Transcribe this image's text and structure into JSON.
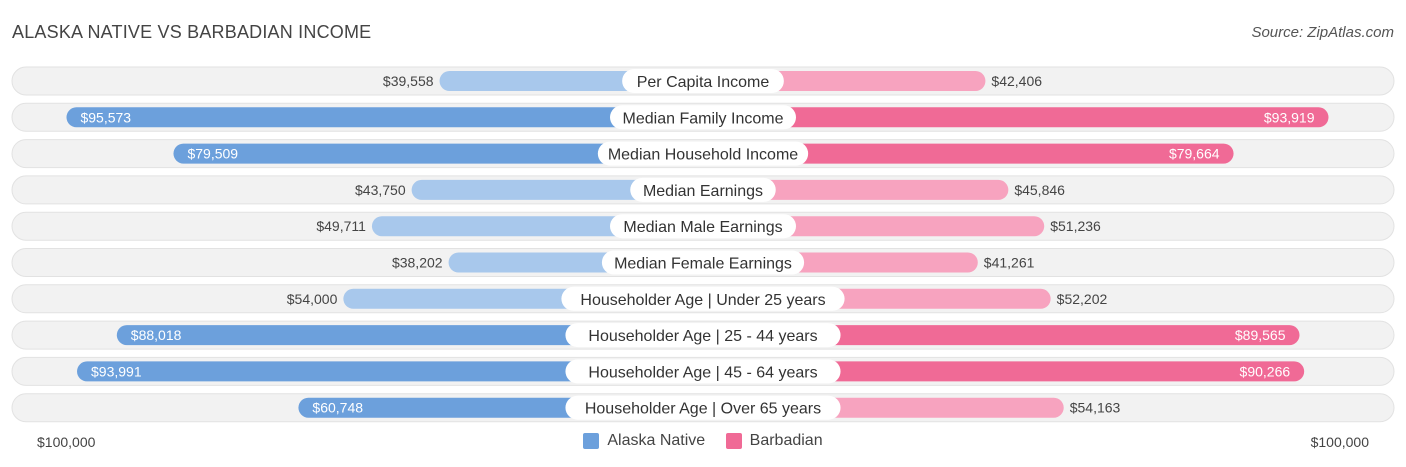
{
  "title": "ALASKA NATIVE VS BARBADIAN INCOME",
  "source": "Source: ZipAtlas.com",
  "axis": {
    "left_label": "$100,000",
    "right_label": "$100,000"
  },
  "legend": [
    {
      "label": "Alaska Native",
      "color": "#6ca0dc"
    },
    {
      "label": "Barbadian",
      "color": "#f06a96"
    }
  ],
  "chart_data": {
    "type": "bar",
    "orientation": "horizontal-diverging",
    "max_value": 100000,
    "categories": [
      "Per Capita Income",
      "Median Family Income",
      "Median Household Income",
      "Median Earnings",
      "Median Male Earnings",
      "Median Female Earnings",
      "Householder Age | Under 25 years",
      "Householder Age | 25 - 44 years",
      "Householder Age | 45 - 64 years",
      "Householder Age | Over 65 years"
    ],
    "series": [
      {
        "name": "Alaska Native",
        "values": [
          39558,
          95573,
          79509,
          43750,
          49711,
          38202,
          54000,
          88018,
          93991,
          60748
        ],
        "labels": [
          "$39,558",
          "$95,573",
          "$79,509",
          "$43,750",
          "$49,711",
          "$38,202",
          "$54,000",
          "$88,018",
          "$93,991",
          "$60,748"
        ]
      },
      {
        "name": "Barbadian",
        "values": [
          42406,
          93919,
          79664,
          45846,
          51236,
          41261,
          52202,
          89565,
          90266,
          54163
        ],
        "labels": [
          "$42,406",
          "$93,919",
          "$79,664",
          "$45,846",
          "$51,236",
          "$41,261",
          "$52,202",
          "$89,565",
          "$90,266",
          "$54,163"
        ]
      }
    ],
    "colors": {
      "left_strong": "#6ca0dc",
      "left_light": "#a8c8ec",
      "right_strong": "#f06a96",
      "right_light": "#f7a3bf"
    }
  }
}
